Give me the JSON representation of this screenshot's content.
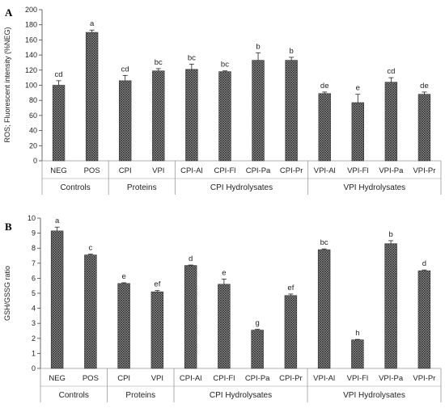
{
  "chart_data": [
    {
      "type": "bar",
      "panel_label": "A",
      "ylabel": "ROS; Fluorescent intensity (%NEG)",
      "ylim": [
        0,
        200
      ],
      "yticks": [
        0,
        20,
        40,
        60,
        80,
        100,
        120,
        140,
        160,
        180,
        200
      ],
      "categories": [
        "NEG",
        "POS",
        "CPI",
        "VPI",
        "CPI-Al",
        "CPI-Fl",
        "CPI-Pa",
        "CPI-Pr",
        "VPI-Al",
        "VPI-Fl",
        "VPI-Pa",
        "VPI-Pr"
      ],
      "values": [
        100,
        170,
        106,
        119,
        121,
        118,
        133,
        133,
        89,
        77,
        104,
        88
      ],
      "errors": [
        6,
        3,
        7,
        3,
        7,
        1,
        10,
        4,
        2,
        11,
        6,
        3
      ],
      "significance": [
        "cd",
        "a",
        "cd",
        "bc",
        "bc",
        "bc",
        "b",
        "b",
        "de",
        "e",
        "cd",
        "de"
      ],
      "groups": [
        {
          "label": "Controls",
          "count": 2
        },
        {
          "label": "Proteins",
          "count": 2
        },
        {
          "label": "CPI Hydrolysates",
          "count": 4
        },
        {
          "label": "VPI Hydrolysates",
          "count": 4
        }
      ],
      "grid": false,
      "bar_pattern": "crosshatch"
    },
    {
      "type": "bar",
      "panel_label": "B",
      "ylabel": "GSH/GSSG ratio",
      "ylim": [
        0,
        10
      ],
      "yticks": [
        0,
        1,
        2,
        3,
        4,
        5,
        6,
        7,
        8,
        9,
        10
      ],
      "categories": [
        "NEG",
        "POS",
        "CPI",
        "VPI",
        "CPI-Al",
        "CPI-Fl",
        "CPI-Pa",
        "CPI-Pr",
        "VPI-Al",
        "VPI-Fl",
        "VPI-Pa",
        "VPI-Pr"
      ],
      "values": [
        9.15,
        7.55,
        5.65,
        5.1,
        6.85,
        5.6,
        2.55,
        4.85,
        7.9,
        1.9,
        8.3,
        6.5
      ],
      "errors": [
        0.25,
        0.05,
        0.05,
        0.08,
        0.03,
        0.35,
        0.05,
        0.1,
        0.05,
        0.03,
        0.2,
        0.05
      ],
      "significance": [
        "a",
        "c",
        "e",
        "ef",
        "d",
        "e",
        "g",
        "ef",
        "bc",
        "h",
        "b",
        "d"
      ],
      "groups": [
        {
          "label": "Controls",
          "count": 2
        },
        {
          "label": "Proteins",
          "count": 2
        },
        {
          "label": "CPI Hydrolysates",
          "count": 4
        },
        {
          "label": "VPI Hydrolysates",
          "count": 4
        }
      ],
      "grid": false,
      "bar_pattern": "crosshatch"
    }
  ],
  "colors": {
    "bar_fill": "#8c8c8c",
    "bar_hatch": "#2b2b2b",
    "axis": "#444444",
    "text": "#222222"
  }
}
